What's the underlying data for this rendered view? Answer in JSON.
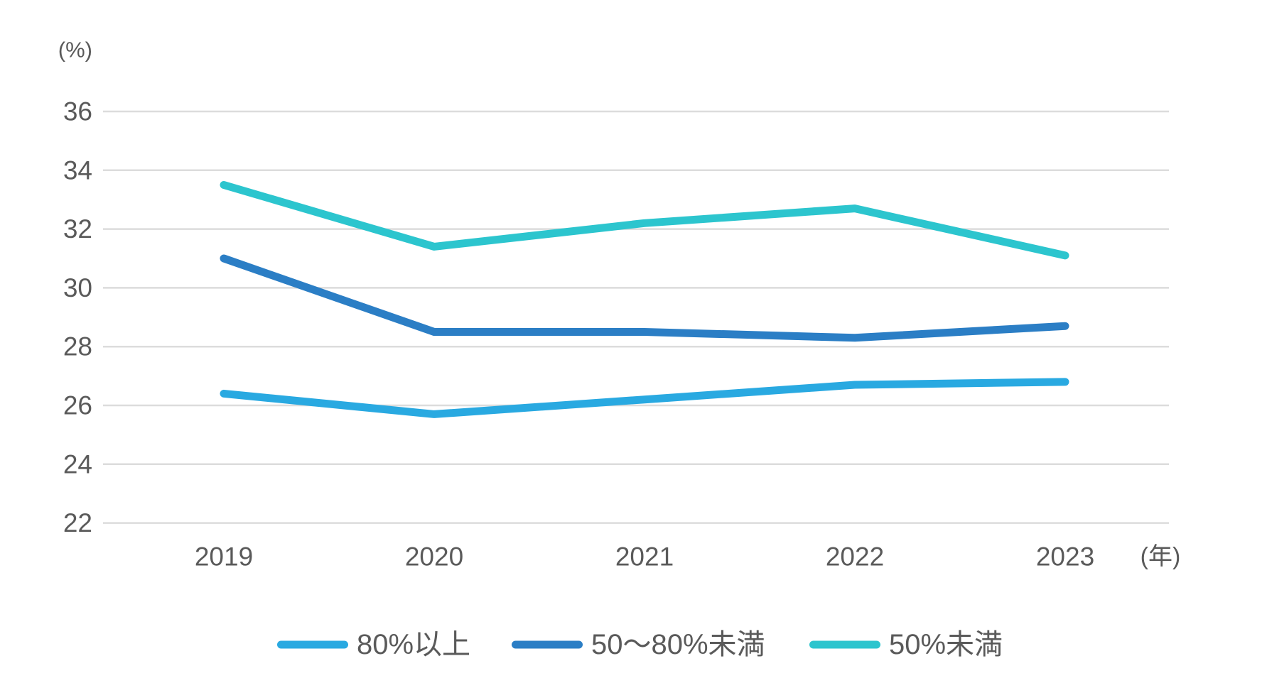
{
  "chart_data": {
    "type": "line",
    "title": "",
    "y_unit_label": "(%)",
    "x_unit_label": "(年)",
    "categories": [
      "2019",
      "2020",
      "2021",
      "2022",
      "2023"
    ],
    "series": [
      {
        "name": "80%以上",
        "color": "#29A9E1",
        "values": [
          26.4,
          25.7,
          26.2,
          26.7,
          26.8
        ]
      },
      {
        "name": "50〜80%未満",
        "color": "#2B7EC5",
        "values": [
          31.0,
          28.5,
          28.5,
          28.3,
          28.7
        ]
      },
      {
        "name": "50%未満",
        "color": "#2CC5CE",
        "values": [
          33.5,
          31.4,
          32.2,
          32.7,
          31.1
        ]
      }
    ],
    "yticks": [
      36,
      34,
      32,
      30,
      28,
      26,
      24,
      22
    ],
    "ylim": [
      22,
      36
    ],
    "grid": true,
    "legend_position": "bottom",
    "text_color": "#5A5A5A",
    "gridline_color": "#DCDCDC",
    "background_color": "#FFFFFF"
  }
}
